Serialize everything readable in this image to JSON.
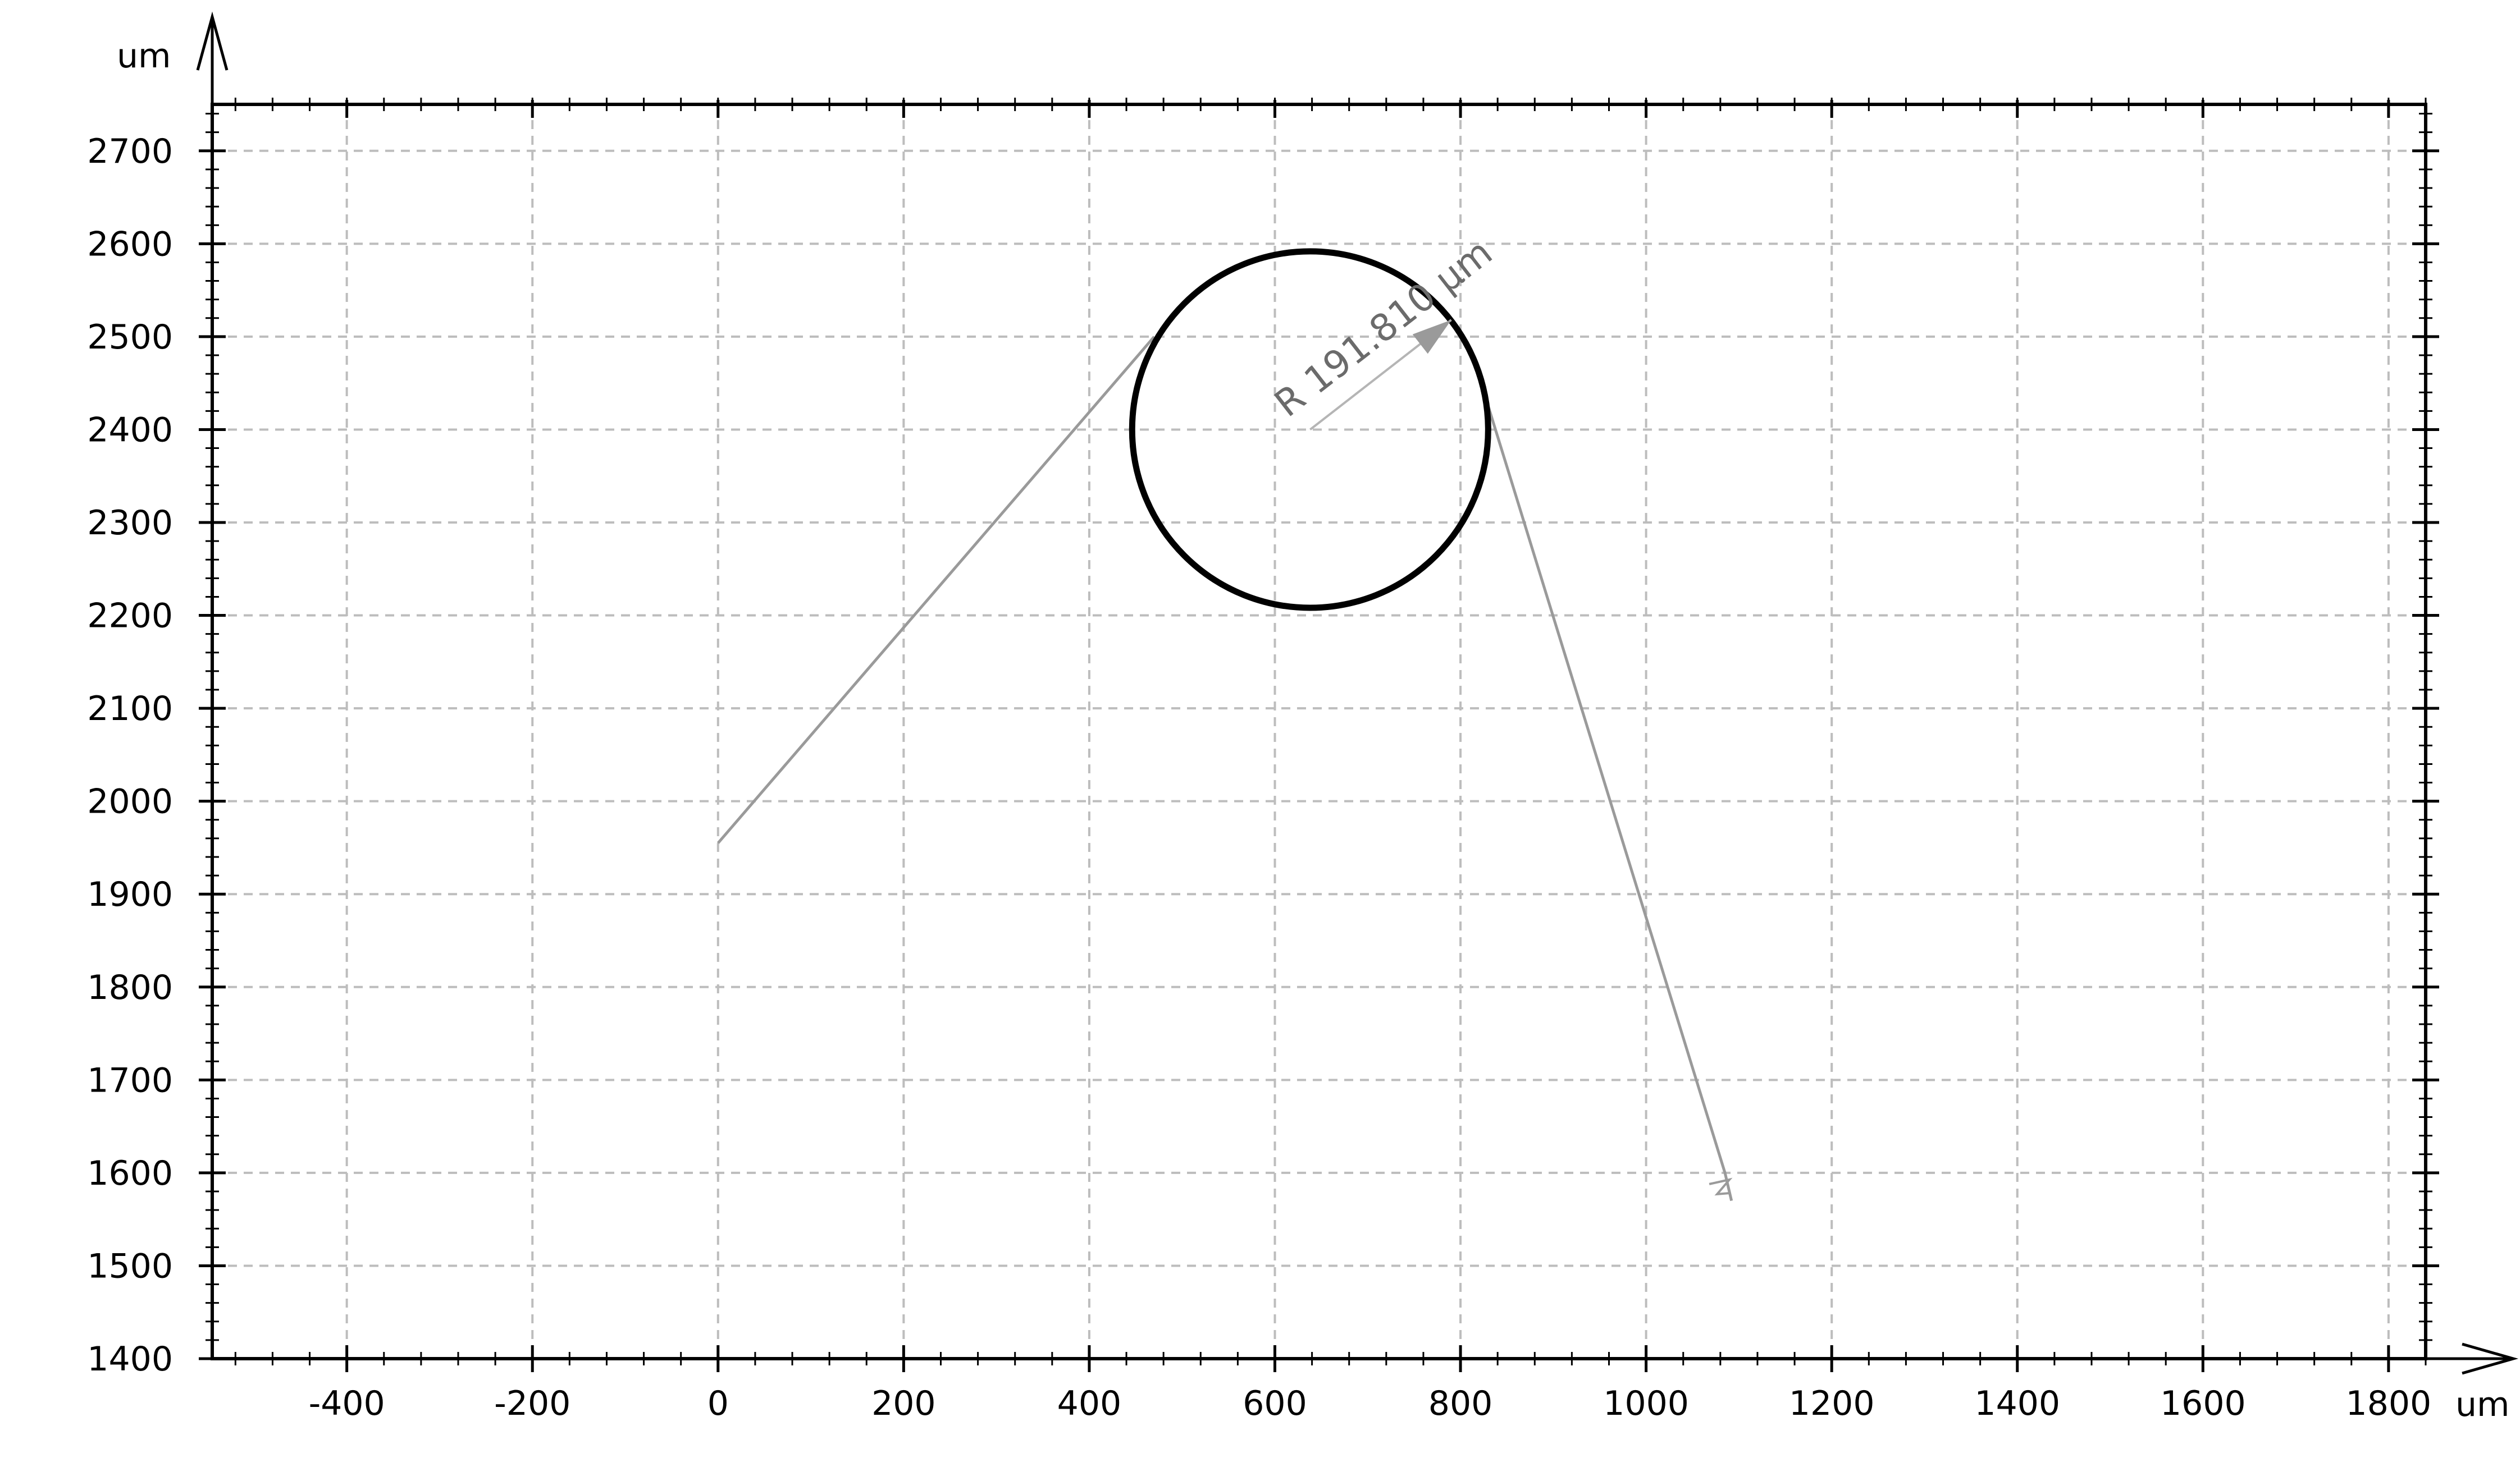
{
  "chart_data": {
    "type": "line",
    "xlabel": "um",
    "ylabel": "um",
    "xlim": [
      -545,
      1840
    ],
    "ylim": [
      1400,
      2750
    ],
    "x_ticks": [
      -400,
      -200,
      0,
      200,
      400,
      600,
      800,
      1000,
      1200,
      1400,
      1600,
      1800
    ],
    "y_ticks": [
      1400,
      1500,
      1600,
      1700,
      1800,
      1900,
      2000,
      2100,
      2200,
      2300,
      2400,
      2500,
      2600,
      2700
    ],
    "grid": true,
    "grid_style": "dashed",
    "colors": {
      "circle": "#000000",
      "path": "#9a9a9a",
      "grid": "#bdbdbd",
      "axis": "#000000",
      "annotation": "#6b6b6b"
    },
    "circle": {
      "center": [
        638,
        2400
      ],
      "radius": 191.81
    },
    "series": [
      {
        "values": [
          [
            0,
            1955
          ],
          [
            470,
            2500
          ]
        ]
      },
      {
        "values": [
          [
            830,
            2425
          ],
          [
            1085,
            1600
          ],
          [
            1092,
            1570
          ]
        ]
      }
    ],
    "annotations": [
      {
        "text": "R 191.810 µm",
        "from": [
          638,
          2400
        ],
        "to": [
          790,
          2518
        ]
      }
    ]
  }
}
